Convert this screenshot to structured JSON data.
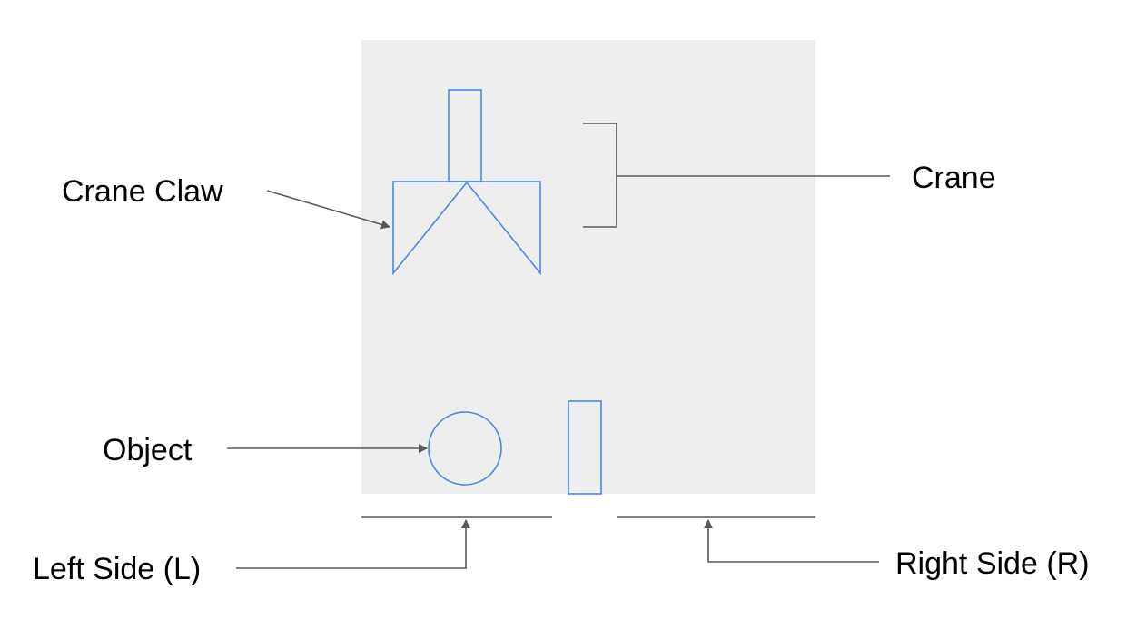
{
  "labels": {
    "crane_claw": "Crane Claw",
    "crane": "Crane",
    "object": "Object",
    "left_side": "Left Side (L)",
    "right_side": "Right Side (R)"
  },
  "colors": {
    "panel_background": "#eeeeee",
    "shape_stroke": "#4a86e8",
    "annotation_stroke": "#595959",
    "text": "#000000"
  }
}
